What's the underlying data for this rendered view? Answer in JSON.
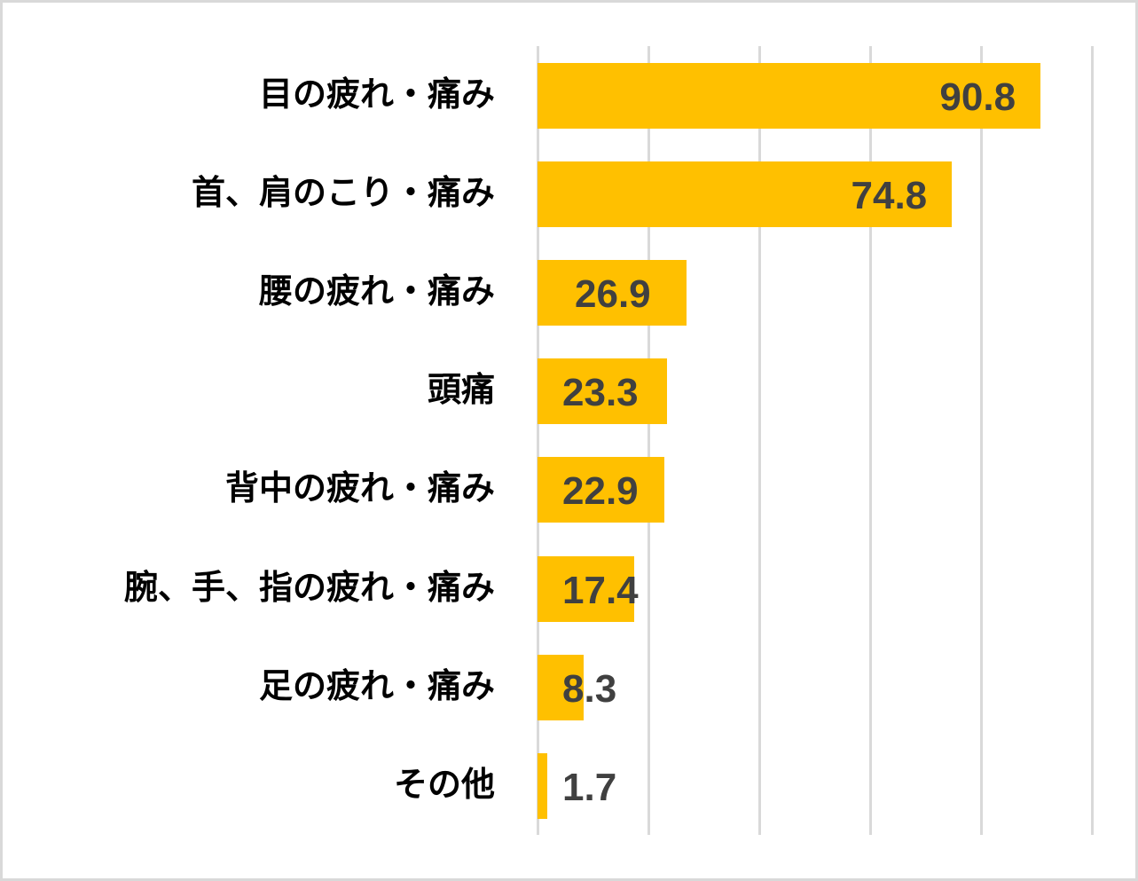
{
  "chart_data": {
    "type": "bar",
    "orientation": "horizontal",
    "title": "",
    "xlabel": "",
    "ylabel": "",
    "xlim": [
      0,
      100
    ],
    "grid": true,
    "grid_step": 20,
    "tick_labels_visible": false,
    "legend": null,
    "categories": [
      "目の疲れ・痛み",
      "首、肩のこり・痛み",
      "腰の疲れ・痛み",
      "頭痛",
      "背中の疲れ・痛み",
      "腕、手、指の疲れ・痛み",
      "足の疲れ・痛み",
      "その他"
    ],
    "values": [
      90.8,
      74.8,
      26.9,
      23.3,
      22.9,
      17.4,
      8.3,
      1.7
    ],
    "labels": [
      "90.8",
      "74.8",
      "26.9",
      "23.3",
      "22.9",
      "17.4",
      "8.3",
      "1.7"
    ],
    "colors": {
      "bar": "#ffc000",
      "label": "#404040",
      "grid": "#d9d9d9",
      "category_text": "#000000"
    }
  }
}
